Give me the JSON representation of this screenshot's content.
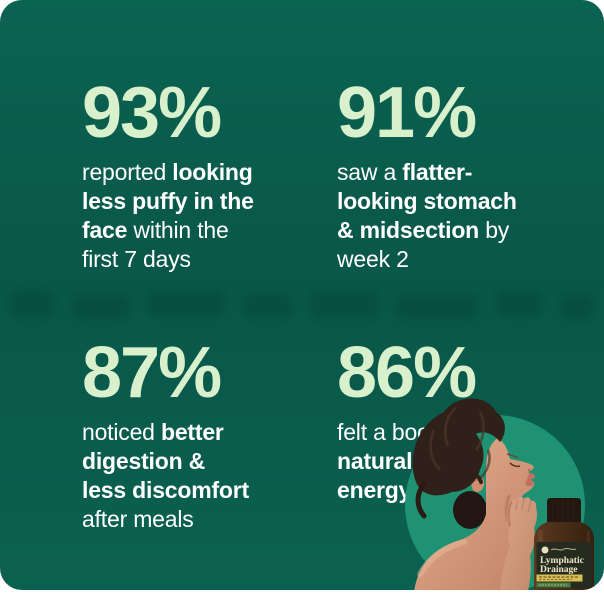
{
  "colors": {
    "card_bg_top": "#0b6352",
    "card_bg_mid": "#095749",
    "card_bg_bottom": "#0b6150",
    "number_accent": "#d9f0cd",
    "body_text": "#ffffff",
    "circle_accent": "#1e9273",
    "page_background": "#ffffff"
  },
  "stats": [
    {
      "value": "93%",
      "lines": [
        [
          {
            "t": "reported ",
            "b": false
          },
          {
            "t": "looking",
            "b": true
          }
        ],
        [
          {
            "t": "less puffy in the",
            "b": true
          }
        ],
        [
          {
            "t": "face",
            "b": true
          },
          {
            "t": " within the",
            "b": false
          }
        ],
        [
          {
            "t": "first 7 days",
            "b": false
          }
        ]
      ]
    },
    {
      "value": "91%",
      "lines": [
        [
          {
            "t": "saw a ",
            "b": false
          },
          {
            "t": "flatter-",
            "b": true
          }
        ],
        [
          {
            "t": "looking stomach",
            "b": true
          }
        ],
        [
          {
            "t": "& midsection",
            "b": true
          },
          {
            "t": " by",
            "b": false
          }
        ],
        [
          {
            "t": "week 2",
            "b": false
          }
        ]
      ]
    },
    {
      "value": "87%",
      "lines": [
        [
          {
            "t": "noticed ",
            "b": false
          },
          {
            "t": "better",
            "b": true
          }
        ],
        [
          {
            "t": "digestion &",
            "b": true
          }
        ],
        [
          {
            "t": "less discomfort",
            "b": true
          }
        ],
        [
          {
            "t": "after meals",
            "b": false
          }
        ]
      ]
    },
    {
      "value": "86%",
      "lines": [
        [
          {
            "t": "felt a boost in",
            "b": false
          }
        ],
        [
          {
            "t": "natural daily",
            "b": true
          }
        ],
        [
          {
            "t": "energy",
            "b": true
          }
        ]
      ]
    }
  ],
  "product": {
    "label_line1": "Lymphatic",
    "label_line2": "Drainage"
  }
}
